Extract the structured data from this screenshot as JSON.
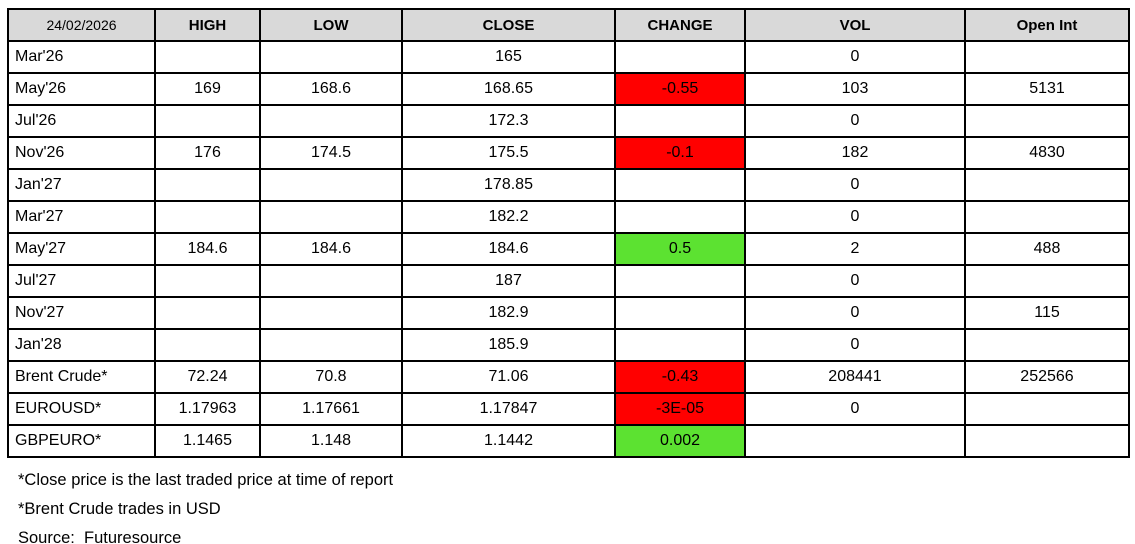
{
  "colors": {
    "negative": "#FF0000",
    "positive": "#5CE231",
    "header_bg": "#D9D9D9",
    "border": "#000000"
  },
  "table": {
    "header": {
      "date": "24/02/2026",
      "columns": [
        "HIGH",
        "LOW",
        "CLOSE",
        "CHANGE",
        "VOL",
        "Open Int"
      ]
    },
    "rows": [
      {
        "contract": "Mar'26",
        "high": "",
        "low": "",
        "close": "165",
        "change": "",
        "change_type": "",
        "vol": "0",
        "open_int": ""
      },
      {
        "contract": "May'26",
        "high": "169",
        "low": "168.6",
        "close": "168.65",
        "change": "-0.55",
        "change_type": "negative",
        "vol": "103",
        "open_int": "5131"
      },
      {
        "contract": "Jul'26",
        "high": "",
        "low": "",
        "close": "172.3",
        "change": "",
        "change_type": "",
        "vol": "0",
        "open_int": ""
      },
      {
        "contract": "Nov'26",
        "high": "176",
        "low": "174.5",
        "close": "175.5",
        "change": "-0.1",
        "change_type": "negative",
        "vol": "182",
        "open_int": "4830"
      },
      {
        "contract": "Jan'27",
        "high": "",
        "low": "",
        "close": "178.85",
        "change": "",
        "change_type": "",
        "vol": "0",
        "open_int": ""
      },
      {
        "contract": "Mar'27",
        "high": "",
        "low": "",
        "close": "182.2",
        "change": "",
        "change_type": "",
        "vol": "0",
        "open_int": ""
      },
      {
        "contract": "May'27",
        "high": "184.6",
        "low": "184.6",
        "close": "184.6",
        "change": "0.5",
        "change_type": "positive",
        "vol": "2",
        "open_int": "488"
      },
      {
        "contract": "Jul'27",
        "high": "",
        "low": "",
        "close": "187",
        "change": "",
        "change_type": "",
        "vol": "0",
        "open_int": ""
      },
      {
        "contract": "Nov'27",
        "high": "",
        "low": "",
        "close": "182.9",
        "change": "",
        "change_type": "",
        "vol": "0",
        "open_int": "115"
      },
      {
        "contract": "Jan'28",
        "high": "",
        "low": "",
        "close": "185.9",
        "change": "",
        "change_type": "",
        "vol": "0",
        "open_int": ""
      },
      {
        "contract": "Brent Crude*",
        "high": "72.24",
        "low": "70.8",
        "close": "71.06",
        "change": "-0.43",
        "change_type": "negative",
        "vol": "208441",
        "open_int": "252566"
      },
      {
        "contract": "EUROUSD*",
        "high": "1.17963",
        "low": "1.17661",
        "close": "1.17847",
        "change": "-3E-05",
        "change_type": "negative",
        "vol": "0",
        "open_int": ""
      },
      {
        "contract": "GBPEURO*",
        "high": "1.1465",
        "low": "1.148",
        "close": "1.1442",
        "change": "0.002",
        "change_type": "positive",
        "vol": "",
        "open_int": ""
      }
    ]
  },
  "footnotes": [
    "*Close price is the last traded price at time of report",
    "*Brent Crude trades in USD",
    "Source:  Futuresource"
  ],
  "chart_data": {
    "type": "table",
    "title": "Futures prices report 24/02/2026",
    "columns": [
      "24/02/2026",
      "HIGH",
      "LOW",
      "CLOSE",
      "CHANGE",
      "VOL",
      "Open Int"
    ],
    "rows": [
      [
        "Mar'26",
        null,
        null,
        165,
        null,
        0,
        null
      ],
      [
        "May'26",
        169,
        168.6,
        168.65,
        -0.55,
        103,
        5131
      ],
      [
        "Jul'26",
        null,
        null,
        172.3,
        null,
        0,
        null
      ],
      [
        "Nov'26",
        176,
        174.5,
        175.5,
        -0.1,
        182,
        4830
      ],
      [
        "Jan'27",
        null,
        null,
        178.85,
        null,
        0,
        null
      ],
      [
        "Mar'27",
        null,
        null,
        182.2,
        null,
        0,
        null
      ],
      [
        "May'27",
        184.6,
        184.6,
        184.6,
        0.5,
        2,
        488
      ],
      [
        "Jul'27",
        null,
        null,
        187,
        null,
        0,
        null
      ],
      [
        "Nov'27",
        null,
        null,
        182.9,
        null,
        0,
        115
      ],
      [
        "Jan'28",
        null,
        null,
        185.9,
        null,
        0,
        null
      ],
      [
        "Brent Crude*",
        72.24,
        70.8,
        71.06,
        -0.43,
        208441,
        252566
      ],
      [
        "EUROUSD*",
        1.17963,
        1.17661,
        1.17847,
        -3e-05,
        0,
        null
      ],
      [
        "GBPEURO*",
        1.1465,
        1.148,
        1.1442,
        0.002,
        null,
        null
      ]
    ],
    "cell_highlights": "CHANGE column: negative values red (#FF0000), positive values green (#5CE231)"
  }
}
